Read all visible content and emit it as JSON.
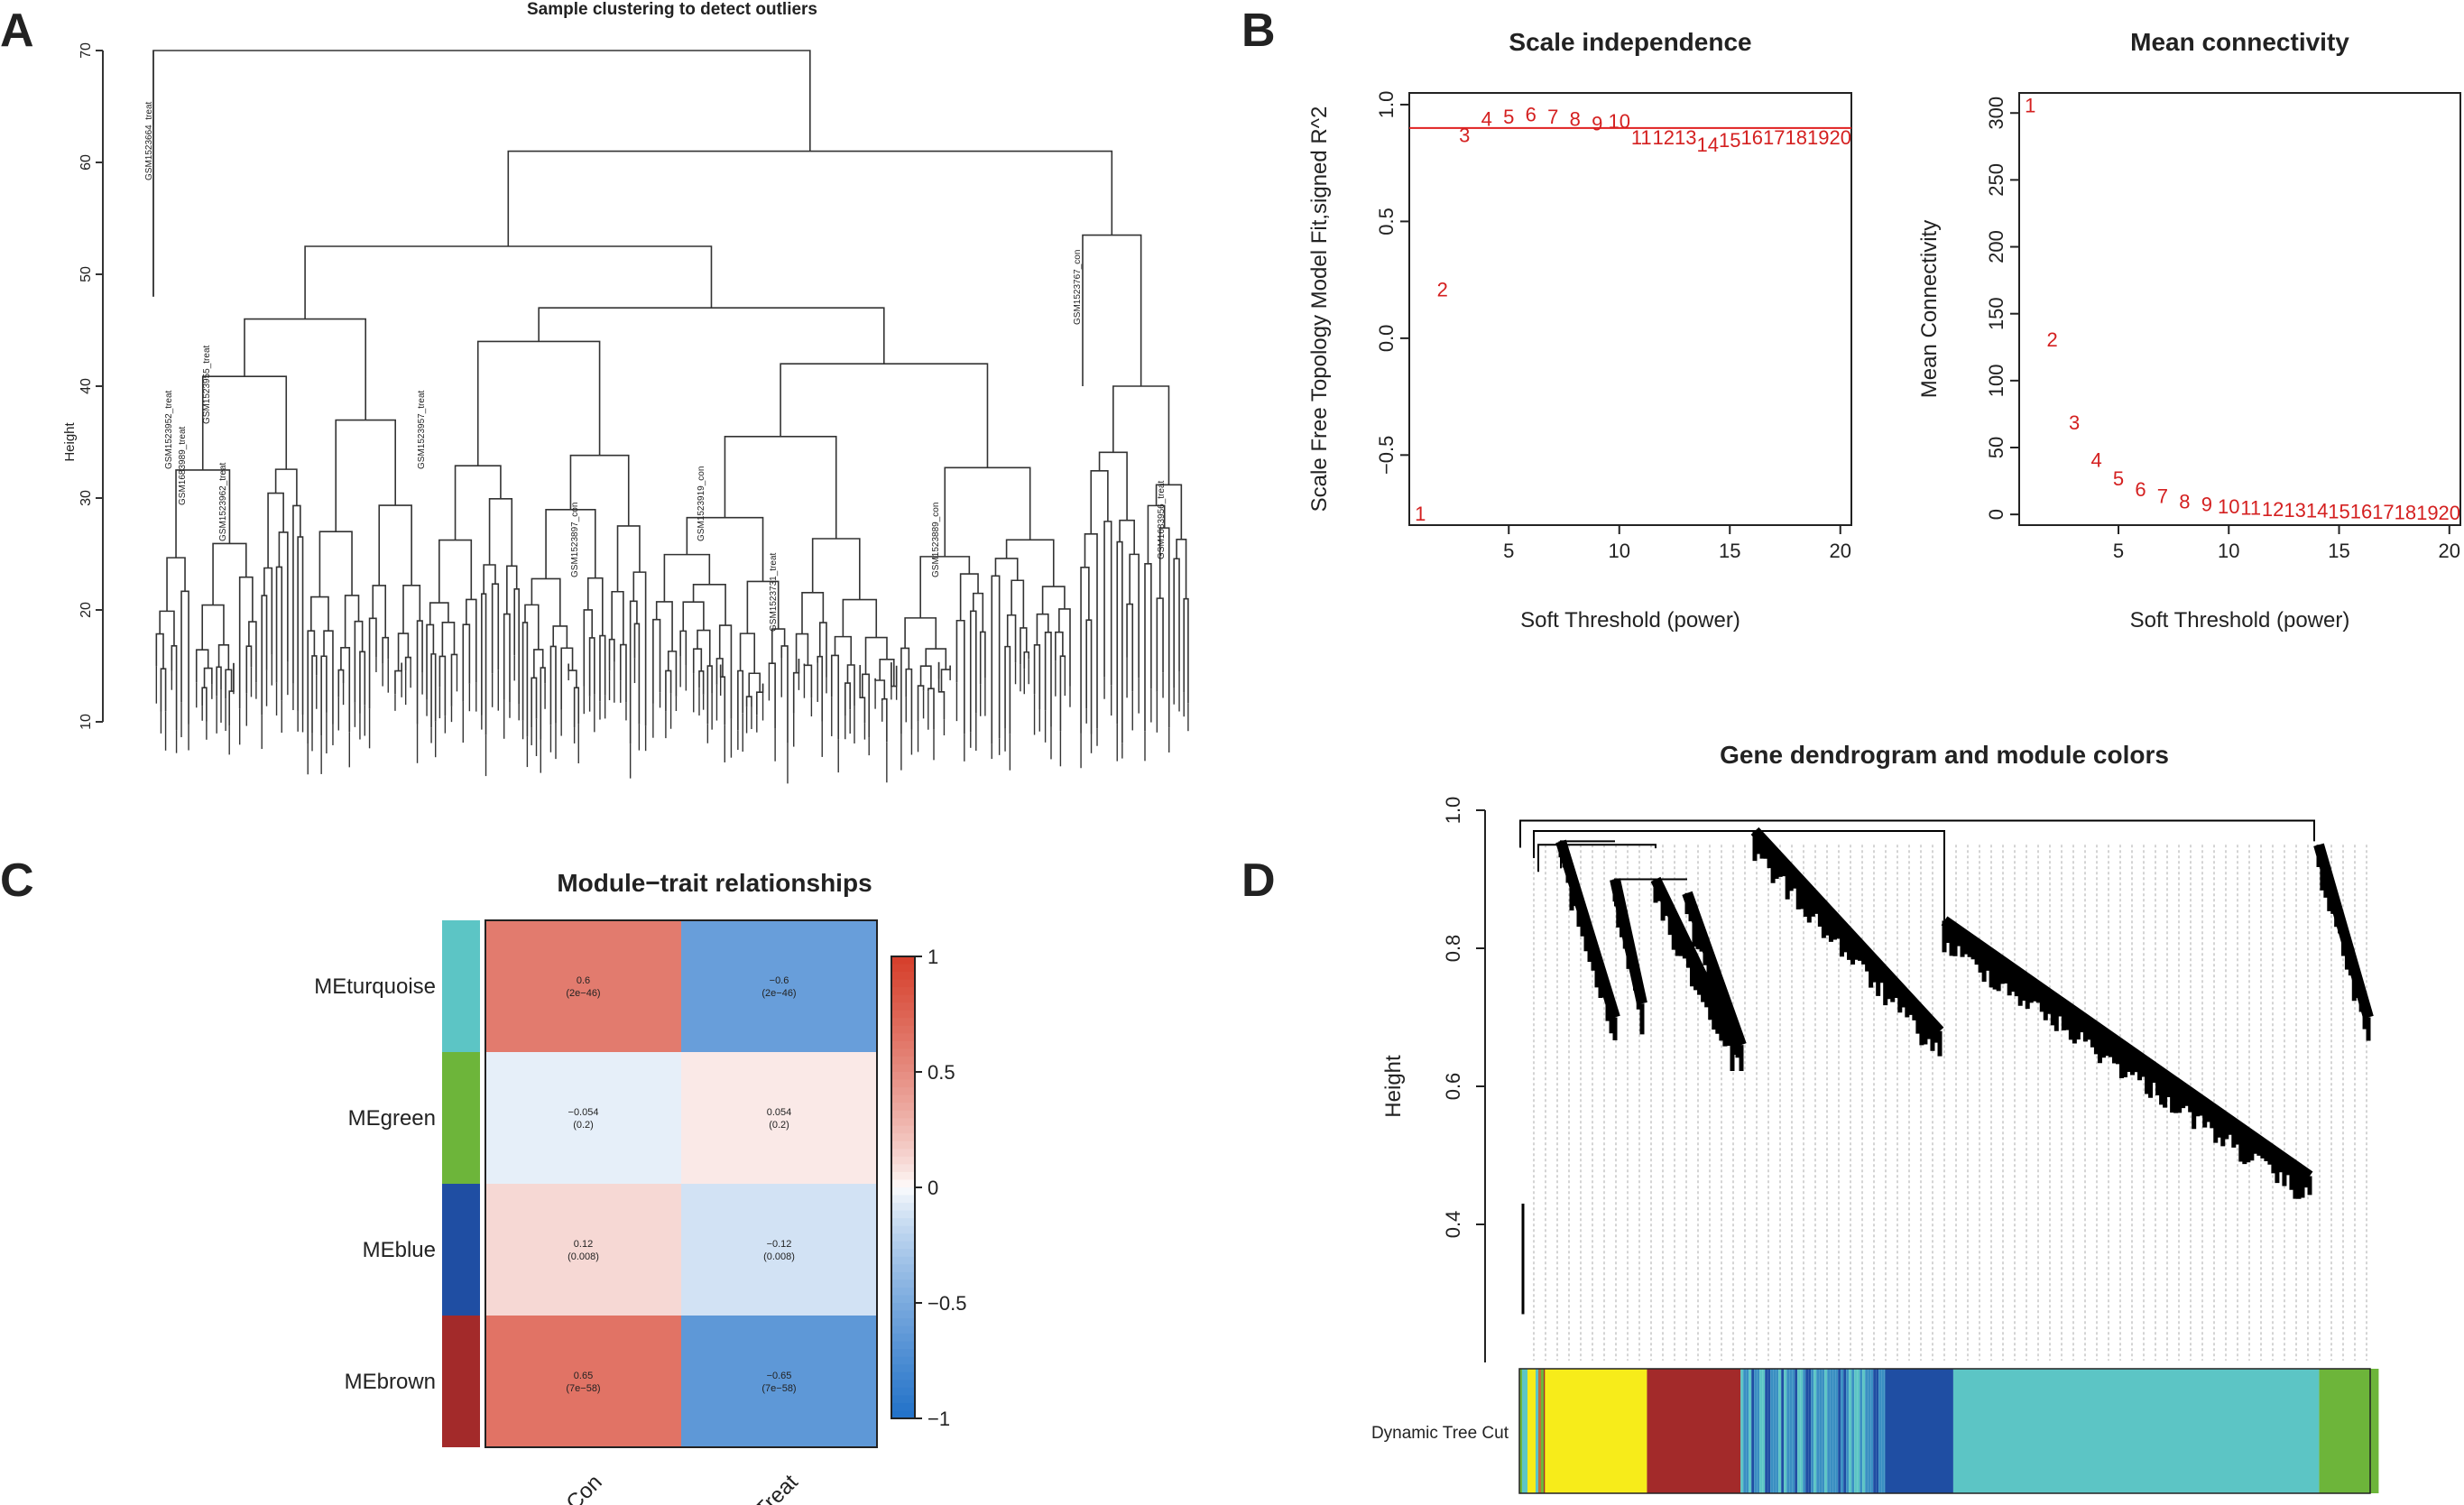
{
  "panels": {
    "a": "A",
    "b": "B",
    "c": "C",
    "d": "D"
  },
  "chart_data": [
    {
      "id": "A",
      "type": "dendrogram",
      "title": "Sample clustering to detect outliers",
      "ylabel": "Height",
      "ylim": [
        8,
        70
      ],
      "yticks": [
        10,
        20,
        30,
        40,
        50,
        60,
        70
      ],
      "leaf_labels": [
        "GSM1523664_treat",
        "GSM1523767_con",
        "GSM1523955_treat",
        "GSM1523952_treat",
        "GSM1683989_treat",
        "GSM1523957_treat",
        "GSM1523962_treat",
        "GSM1523919_con",
        "GSM1523889_con",
        "GSM1523731_treat",
        "GSM1523897_con",
        "GSM1683956_treat"
      ],
      "merge_heights": {
        "root": 70,
        "second": 61,
        "main_cluster": 53,
        "right_cluster": 53.5
      }
    },
    {
      "id": "B1",
      "type": "scatter",
      "title": "Scale independence",
      "xlabel": "Soft Threshold (power)",
      "ylabel": "Scale Free Topology Model Fit,signed R^2",
      "xlim": [
        0.5,
        20.5
      ],
      "ylim": [
        -0.8,
        1.05
      ],
      "xticks": [
        5,
        10,
        15,
        20
      ],
      "yticks": [
        -0.5,
        0.0,
        0.5,
        1.0
      ],
      "ytick_labels": [
        "−0.5",
        "0.0",
        "0.5",
        "1.0"
      ],
      "hline": 0.9,
      "x": [
        1,
        2,
        3,
        4,
        5,
        6,
        7,
        8,
        9,
        10,
        11,
        12,
        13,
        14,
        15,
        16,
        17,
        18,
        19,
        20
      ],
      "y": [
        -0.75,
        0.21,
        0.87,
        0.94,
        0.95,
        0.96,
        0.95,
        0.94,
        0.92,
        0.93,
        0.86,
        0.86,
        0.86,
        0.83,
        0.85,
        0.86,
        0.86,
        0.86,
        0.86,
        0.86
      ]
    },
    {
      "id": "B2",
      "type": "scatter",
      "title": "Mean connectivity",
      "xlabel": "Soft Threshold (power)",
      "ylabel": "Mean Connectivity",
      "xlim": [
        0.5,
        20.5
      ],
      "ylim": [
        -8,
        315
      ],
      "xticks": [
        5,
        10,
        15,
        20
      ],
      "yticks": [
        0,
        50,
        100,
        150,
        200,
        250,
        300
      ],
      "x": [
        1,
        2,
        3,
        4,
        5,
        6,
        7,
        8,
        9,
        10,
        11,
        12,
        13,
        14,
        15,
        16,
        17,
        18,
        19,
        20
      ],
      "y": [
        306,
        131,
        69,
        41,
        27,
        19,
        14,
        10,
        8,
        6,
        5,
        4,
        3.5,
        3,
        2.6,
        2.3,
        2,
        1.8,
        1.6,
        1.4
      ]
    },
    {
      "id": "C",
      "type": "heatmap",
      "title": "Module−trait relationships",
      "columns": [
        "Con",
        "Treat"
      ],
      "rows": [
        "MEturquoise",
        "MEgreen",
        "MEblue",
        "MEbrown"
      ],
      "row_colors": [
        "#5cc5c5",
        "#6db53a",
        "#1f4ea3",
        "#a32a2a"
      ],
      "values": [
        [
          0.6,
          -0.6
        ],
        [
          -0.054,
          0.054
        ],
        [
          0.12,
          -0.12
        ],
        [
          0.65,
          -0.65
        ]
      ],
      "value_labels": [
        [
          "0.6",
          "−0.6"
        ],
        [
          "−0.054",
          "0.054"
        ],
        [
          "0.12",
          "−0.12"
        ],
        [
          "0.65",
          "−0.65"
        ]
      ],
      "pvalues": [
        [
          "(2e−46)",
          "(2e−46)"
        ],
        [
          "(0.2)",
          "(0.2)"
        ],
        [
          "(0.008)",
          "(0.008)"
        ],
        [
          "(7e−58)",
          "(7e−58)"
        ]
      ],
      "colorbar_ticks": [
        1,
        0.5,
        0,
        -0.5,
        -1
      ],
      "colorbar_labels": [
        "1",
        "0.5",
        "0",
        "−0.5",
        "−1"
      ]
    },
    {
      "id": "D",
      "type": "dendrogram",
      "title": "Gene dendrogram and module colors",
      "ylabel": "Height",
      "ylim": [
        0.2,
        1.0
      ],
      "yticks": [
        0.4,
        0.6,
        0.8,
        1.0
      ],
      "colorbar_label": "Dynamic Tree Cut",
      "modules": [
        {
          "name": "misc",
          "color": "#c0703a",
          "fraction": 0.03
        },
        {
          "name": "yellow",
          "color": "#f7ec1a",
          "fraction": 0.12
        },
        {
          "name": "brown",
          "color": "#a32a2a",
          "fraction": 0.11
        },
        {
          "name": "blue-mixed",
          "color": "#3a8fc2",
          "fraction": 0.17
        },
        {
          "name": "blue",
          "color": "#1f4ea3",
          "fraction": 0.08
        },
        {
          "name": "turquoise",
          "color": "#5cc5c5",
          "fraction": 0.43
        },
        {
          "name": "green",
          "color": "#6db53a",
          "fraction": 0.07
        }
      ]
    }
  ]
}
